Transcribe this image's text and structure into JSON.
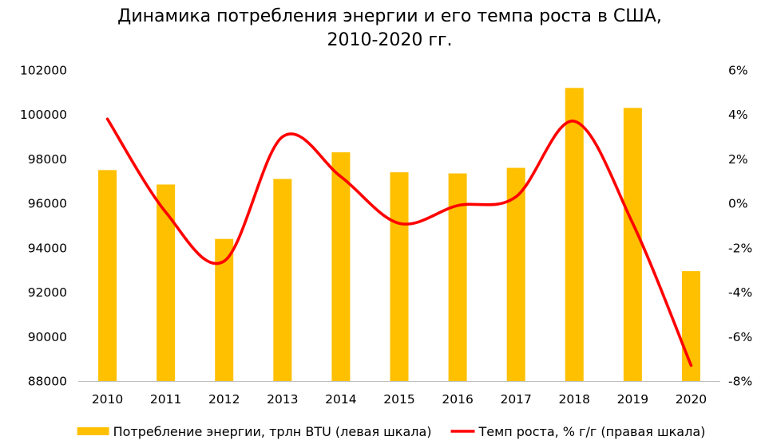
{
  "chart_data": {
    "type": "bar",
    "title": [
      "Динамика потребления энергии и его темпа роста в США,",
      "2010-2020 гг."
    ],
    "categories": [
      "2010",
      "2011",
      "2012",
      "2013",
      "2014",
      "2015",
      "2016",
      "2017",
      "2018",
      "2019",
      "2020"
    ],
    "series": [
      {
        "name": "Потребление энергии, трлн BTU (левая шкала)",
        "type": "bar",
        "axis": "left",
        "color": "#FFC000",
        "values": [
          97500,
          96850,
          94400,
          97100,
          98300,
          97400,
          97350,
          97600,
          101200,
          100300,
          92950
        ]
      },
      {
        "name": "Темп роста, % г/г (правая шкала)",
        "type": "line",
        "smooth": true,
        "axis": "right",
        "color": "#FF0000",
        "values": [
          3.8,
          -0.4,
          -2.6,
          3.0,
          1.2,
          -0.9,
          -0.1,
          0.3,
          3.7,
          -0.9,
          -7.3
        ]
      }
    ],
    "y_left": {
      "ylim": [
        88000,
        102000
      ],
      "tick_labels": [
        "88000",
        "90000",
        "92000",
        "94000",
        "96000",
        "98000",
        "100000",
        "102000"
      ]
    },
    "y_right": {
      "ylim": [
        -8,
        6
      ],
      "tick_labels": [
        "-8%",
        "-6%",
        "-4%",
        "-2%",
        "0%",
        "2%",
        "4%",
        "6%"
      ]
    },
    "grid": false,
    "legend": "bottom",
    "axis_color": "#BFBFBF"
  }
}
